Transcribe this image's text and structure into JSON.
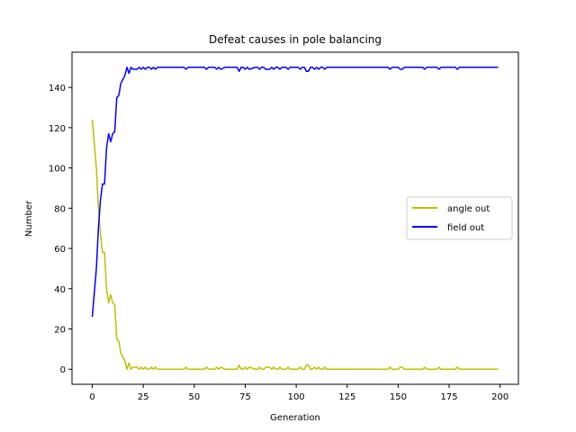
{
  "chart_data": {
    "type": "line",
    "title": "Defeat causes in pole balancing",
    "xlabel": "Generation",
    "ylabel": "Number",
    "xlim": [
      -9.95,
      208.95
    ],
    "ylim": [
      -7.5,
      157.5
    ],
    "xticks": [
      0,
      25,
      50,
      75,
      100,
      125,
      150,
      175,
      200
    ],
    "yticks": [
      0,
      20,
      40,
      60,
      80,
      100,
      120,
      140
    ],
    "grid": false,
    "legend_position": "center-right",
    "series": [
      {
        "name": "angle out",
        "color": "#bfbf00",
        "x": [
          0,
          1,
          2,
          3,
          4,
          5,
          6,
          7,
          8,
          9,
          10,
          11,
          12,
          13,
          14,
          15,
          16,
          17,
          18,
          19,
          20,
          21,
          22,
          23,
          24,
          25,
          26,
          27,
          28,
          29,
          30,
          31,
          32,
          33,
          34,
          35,
          40,
          45,
          46,
          47,
          50,
          55,
          56,
          57,
          60,
          61,
          62,
          63,
          65,
          70,
          71,
          72,
          73,
          74,
          75,
          76,
          77,
          80,
          81,
          82,
          83,
          84,
          85,
          86,
          87,
          88,
          89,
          90,
          91,
          92,
          93,
          94,
          95,
          96,
          97,
          98,
          99,
          100,
          101,
          102,
          103,
          104,
          105,
          106,
          107,
          108,
          109,
          110,
          111,
          112,
          113,
          114,
          115,
          120,
          125,
          130,
          135,
          140,
          145,
          146,
          147,
          150,
          151,
          152,
          153,
          160,
          162,
          163,
          164,
          165,
          169,
          170,
          171,
          178,
          179,
          180,
          185,
          190,
          195,
          199
        ],
        "y": [
          124,
          112,
          100,
          80,
          67,
          58,
          58,
          40,
          33,
          37,
          33,
          32,
          15,
          14,
          8,
          6,
          4,
          0,
          3,
          0,
          1,
          1,
          1,
          0,
          1,
          0,
          1,
          0,
          0,
          1,
          0,
          1,
          0,
          0,
          0,
          0,
          0,
          0,
          1,
          0,
          0,
          0,
          1,
          0,
          0,
          1,
          0,
          1,
          0,
          0,
          0,
          2,
          0,
          0,
          1,
          0,
          1,
          0,
          0,
          1,
          0,
          0,
          1,
          1,
          1,
          0,
          1,
          0,
          0,
          1,
          0,
          0,
          0,
          1,
          0,
          0,
          0,
          0,
          0,
          1,
          0,
          0,
          2,
          2,
          0,
          0,
          1,
          0,
          1,
          0,
          0,
          1,
          0,
          0,
          0,
          0,
          0,
          0,
          0,
          1,
          0,
          0,
          1,
          1,
          0,
          0,
          0,
          1,
          0,
          0,
          0,
          1,
          0,
          0,
          1,
          0,
          0,
          0,
          0,
          0
        ]
      },
      {
        "name": "field out",
        "color": "#0000ff",
        "x": [
          0,
          1,
          2,
          3,
          4,
          5,
          6,
          7,
          8,
          9,
          10,
          11,
          12,
          13,
          14,
          15,
          16,
          17,
          18,
          19,
          20,
          21,
          22,
          23,
          24,
          25,
          26,
          27,
          28,
          29,
          30,
          31,
          32,
          33,
          34,
          35,
          40,
          45,
          46,
          47,
          50,
          55,
          56,
          57,
          60,
          61,
          62,
          63,
          65,
          70,
          71,
          72,
          73,
          74,
          75,
          76,
          77,
          80,
          81,
          82,
          83,
          84,
          85,
          86,
          87,
          88,
          89,
          90,
          91,
          92,
          93,
          94,
          95,
          96,
          97,
          98,
          99,
          100,
          101,
          102,
          103,
          104,
          105,
          106,
          107,
          108,
          109,
          110,
          111,
          112,
          113,
          114,
          115,
          120,
          125,
          130,
          135,
          140,
          145,
          146,
          147,
          150,
          151,
          152,
          153,
          160,
          162,
          163,
          164,
          165,
          169,
          170,
          171,
          178,
          179,
          180,
          185,
          190,
          195,
          199
        ],
        "y": [
          26,
          38,
          50,
          70,
          84,
          92,
          92,
          110,
          117,
          113,
          117,
          118,
          135,
          136,
          142,
          144,
          146,
          150,
          147,
          150,
          149,
          149,
          149,
          150,
          149,
          150,
          149,
          150,
          150,
          149,
          150,
          149,
          150,
          150,
          150,
          150,
          150,
          150,
          149,
          150,
          150,
          150,
          149,
          150,
          150,
          149,
          150,
          149,
          150,
          150,
          150,
          148,
          150,
          150,
          149,
          150,
          149,
          150,
          150,
          149,
          150,
          150,
          149,
          149,
          149,
          150,
          149,
          150,
          150,
          149,
          150,
          150,
          150,
          149,
          150,
          150,
          150,
          150,
          150,
          149,
          150,
          150,
          148,
          148,
          150,
          150,
          149,
          150,
          149,
          150,
          150,
          149,
          150,
          150,
          150,
          150,
          150,
          150,
          150,
          149,
          150,
          150,
          149,
          149,
          150,
          150,
          150,
          149,
          150,
          150,
          150,
          149,
          150,
          150,
          149,
          150,
          150,
          150,
          150,
          150
        ]
      }
    ]
  }
}
